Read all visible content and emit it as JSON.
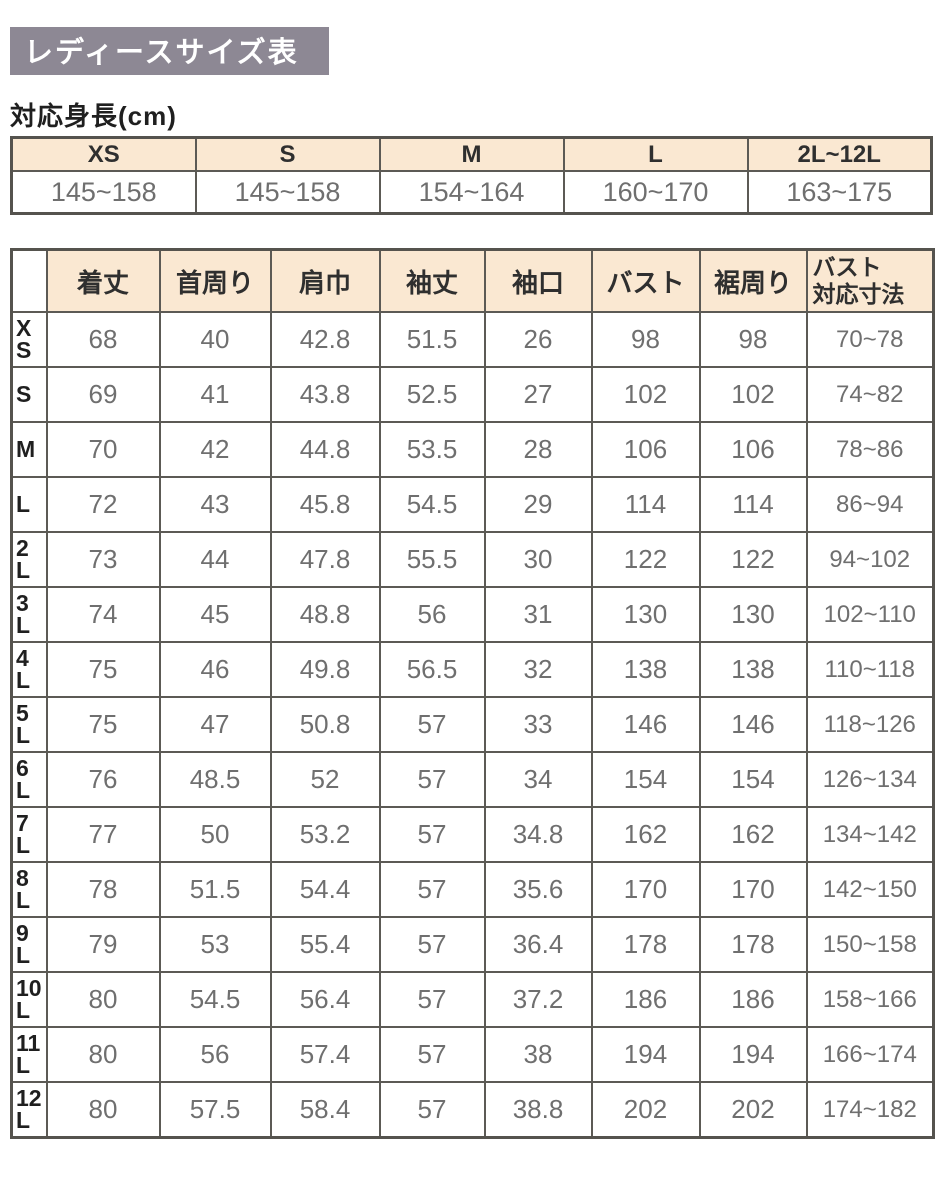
{
  "page": {
    "title": "レディースサイズ表",
    "height_label": "対応身長(cm)"
  },
  "colors": {
    "title_bg": "#8D8894",
    "header_bg": "#FAE8D2",
    "border": "#5C5A55",
    "border_dark": "#55534E",
    "data_text": "#6F6F6F"
  },
  "height_table": {
    "columns": [
      "XS",
      "S",
      "M",
      "L",
      "2L~12L"
    ],
    "values": [
      "145~158",
      "145~158",
      "154~164",
      "160~170",
      "163~175"
    ]
  },
  "size_table": {
    "columns": [
      {
        "label": "着丈"
      },
      {
        "label": "首周り"
      },
      {
        "label": "肩巾"
      },
      {
        "label": "袖丈"
      },
      {
        "label": "袖口"
      },
      {
        "label": "バスト"
      },
      {
        "label": "裾周り"
      },
      {
        "label": "バスト",
        "label2": "対応寸法"
      }
    ],
    "rows": [
      {
        "label_lines": [
          "X",
          "S"
        ],
        "values": [
          "68",
          "40",
          "42.8",
          "51.5",
          "26",
          "98",
          "98",
          "70~78"
        ]
      },
      {
        "label_lines": [
          "S"
        ],
        "values": [
          "69",
          "41",
          "43.8",
          "52.5",
          "27",
          "102",
          "102",
          "74~82"
        ]
      },
      {
        "label_lines": [
          "M"
        ],
        "values": [
          "70",
          "42",
          "44.8",
          "53.5",
          "28",
          "106",
          "106",
          "78~86"
        ]
      },
      {
        "label_lines": [
          "L"
        ],
        "values": [
          "72",
          "43",
          "45.8",
          "54.5",
          "29",
          "114",
          "114",
          "86~94"
        ]
      },
      {
        "label_lines": [
          "2",
          "L"
        ],
        "values": [
          "73",
          "44",
          "47.8",
          "55.5",
          "30",
          "122",
          "122",
          "94~102"
        ]
      },
      {
        "label_lines": [
          "3",
          "L"
        ],
        "values": [
          "74",
          "45",
          "48.8",
          "56",
          "31",
          "130",
          "130",
          "102~110"
        ]
      },
      {
        "label_lines": [
          "4",
          "L"
        ],
        "values": [
          "75",
          "46",
          "49.8",
          "56.5",
          "32",
          "138",
          "138",
          "110~118"
        ]
      },
      {
        "label_lines": [
          "5",
          "L"
        ],
        "values": [
          "75",
          "47",
          "50.8",
          "57",
          "33",
          "146",
          "146",
          "118~126"
        ]
      },
      {
        "label_lines": [
          "6",
          "L"
        ],
        "values": [
          "76",
          "48.5",
          "52",
          "57",
          "34",
          "154",
          "154",
          "126~134"
        ]
      },
      {
        "label_lines": [
          "7",
          "L"
        ],
        "values": [
          "77",
          "50",
          "53.2",
          "57",
          "34.8",
          "162",
          "162",
          "134~142"
        ]
      },
      {
        "label_lines": [
          "8",
          "L"
        ],
        "values": [
          "78",
          "51.5",
          "54.4",
          "57",
          "35.6",
          "170",
          "170",
          "142~150"
        ]
      },
      {
        "label_lines": [
          "9",
          "L"
        ],
        "values": [
          "79",
          "53",
          "55.4",
          "57",
          "36.4",
          "178",
          "178",
          "150~158"
        ]
      },
      {
        "label_lines": [
          "10",
          "L"
        ],
        "values": [
          "80",
          "54.5",
          "56.4",
          "57",
          "37.2",
          "186",
          "186",
          "158~166"
        ]
      },
      {
        "label_lines": [
          "11",
          "L"
        ],
        "values": [
          "80",
          "56",
          "57.4",
          "57",
          "38",
          "194",
          "194",
          "166~174"
        ]
      },
      {
        "label_lines": [
          "12",
          "L"
        ],
        "values": [
          "80",
          "57.5",
          "58.4",
          "57",
          "38.8",
          "202",
          "202",
          "174~182"
        ]
      }
    ]
  }
}
